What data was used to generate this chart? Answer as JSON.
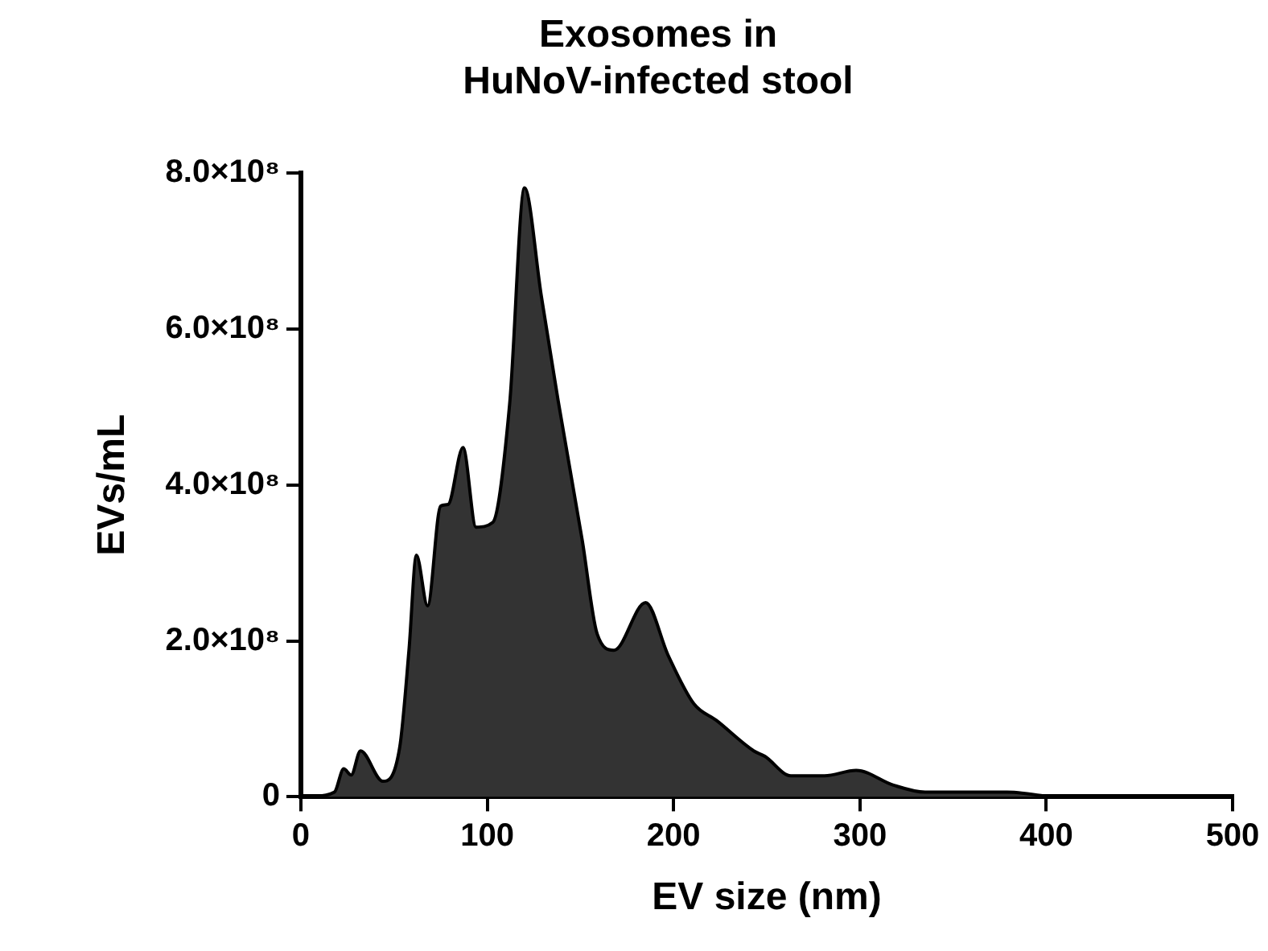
{
  "chart_data": {
    "type": "area",
    "title": "Exosomes in HuNoV-infected stool",
    "xlabel": "EV size (nm)",
    "ylabel": "EVs/mL",
    "x": [
      5,
      18,
      23,
      27,
      32,
      44,
      53,
      58,
      62,
      68,
      75,
      79,
      87,
      94,
      103,
      112,
      120,
      129,
      138,
      151,
      159,
      168,
      185,
      197,
      211,
      223,
      243,
      249,
      263,
      281,
      298,
      318,
      335,
      379,
      400
    ],
    "series": [
      {
        "color": "#333333",
        "values": [
          0,
          6000000,
          36000000,
          28000000,
          59000000,
          20000000,
          63000000,
          188000000,
          310000000,
          245000000,
          373000000,
          375000000,
          448000000,
          346000000,
          352000000,
          503000000,
          781000000,
          643000000,
          509000000,
          329000000,
          209000000,
          188000000,
          249000000,
          182000000,
          119000000,
          98000000,
          59000000,
          52000000,
          27000000,
          27000000,
          34000000,
          15000000,
          6000000,
          6000000,
          1000000
        ]
      }
    ],
    "xlim": [
      0,
      500
    ],
    "xticks": [
      0,
      100,
      200,
      300,
      400,
      500
    ],
    "ylim": [
      0,
      800000000
    ],
    "yticks": [
      {
        "value": 0,
        "label": "0"
      },
      {
        "value": 200000000,
        "label": "2.0×10⁸"
      },
      {
        "value": 400000000,
        "label": "4.0×10⁸"
      },
      {
        "value": 600000000,
        "label": "6.0×10⁸"
      },
      {
        "value": 800000000,
        "label": "8.0×10⁸"
      }
    ],
    "grid": false,
    "legend": false
  }
}
